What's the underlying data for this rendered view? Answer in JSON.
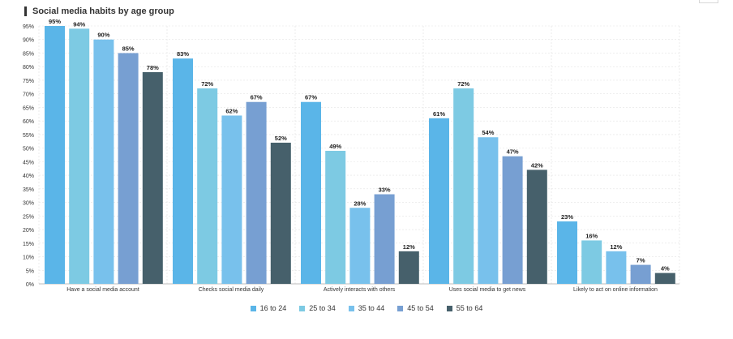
{
  "chart_data": {
    "type": "bar",
    "title": "Social media habits by age group",
    "categories": [
      "Have a social media account",
      "Checks social media daily",
      "Actively interacts with others",
      "Uses social media to get news",
      "Likely to act on online information"
    ],
    "series": [
      {
        "name": "16 to 24",
        "color": "#5ab5e8",
        "values": [
          95,
          83,
          67,
          61,
          23
        ]
      },
      {
        "name": "25 to 34",
        "color": "#7dcae3",
        "values": [
          94,
          72,
          49,
          72,
          16
        ]
      },
      {
        "name": "35 to 44",
        "color": "#78c1ec",
        "values": [
          90,
          62,
          28,
          54,
          12
        ]
      },
      {
        "name": "45 to 54",
        "color": "#779fd2",
        "values": [
          85,
          67,
          33,
          47,
          7
        ]
      },
      {
        "name": "55 to 64",
        "color": "#46606b",
        "values": [
          78,
          52,
          12,
          42,
          4
        ]
      }
    ],
    "ylim": [
      0,
      95
    ],
    "yticks": [
      "0%",
      "5%",
      "10%",
      "15%",
      "20%",
      "25%",
      "30%",
      "35%",
      "40%",
      "45%",
      "50%",
      "55%",
      "60%",
      "65%",
      "70%",
      "75%",
      "80%",
      "85%",
      "90%",
      "95%"
    ],
    "value_suffix": "%",
    "xlabel": "",
    "ylabel": "",
    "grid": true,
    "legend_position": "bottom"
  }
}
